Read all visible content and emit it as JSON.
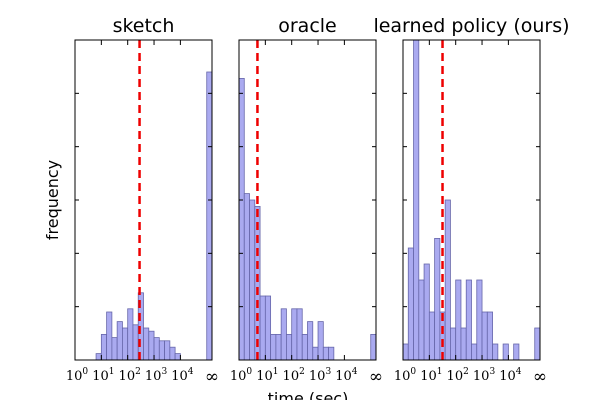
{
  "figure": {
    "xlabel": "time (sec)",
    "ylabel": "frequency"
  },
  "colors": {
    "bar_fill": "#aaaaf0",
    "bar_stroke": "#6666aa",
    "median_line": "#ee0000"
  },
  "x_ticks": [
    {
      "base": "10",
      "exp": "0"
    },
    {
      "base": "10",
      "exp": "1"
    },
    {
      "base": "10",
      "exp": "2"
    },
    {
      "base": "10",
      "exp": "3"
    },
    {
      "base": "10",
      "exp": "4"
    },
    {
      "base": "∞",
      "exp": ""
    }
  ],
  "chart_data": [
    {
      "type": "bar",
      "title": "sketch",
      "x_scale": "log10",
      "xlim": [
        1,
        100000
      ],
      "inf_label": "∞",
      "median_log10": 2.45,
      "bars": [
        {
          "log10_start": 0.8,
          "count": 0.02
        },
        {
          "log10_start": 1.0,
          "count": 0.08
        },
        {
          "log10_start": 1.2,
          "count": 0.15
        },
        {
          "log10_start": 1.4,
          "count": 0.07
        },
        {
          "log10_start": 1.6,
          "count": 0.12
        },
        {
          "log10_start": 1.8,
          "count": 0.1
        },
        {
          "log10_start": 2.0,
          "count": 0.16
        },
        {
          "log10_start": 2.2,
          "count": 0.11
        },
        {
          "log10_start": 2.4,
          "count": 0.21
        },
        {
          "log10_start": 2.6,
          "count": 0.1
        },
        {
          "log10_start": 2.8,
          "count": 0.09
        },
        {
          "log10_start": 3.0,
          "count": 0.07
        },
        {
          "log10_start": 3.2,
          "count": 0.06
        },
        {
          "log10_start": 3.4,
          "count": 0.06
        },
        {
          "log10_start": 3.6,
          "count": 0.04
        },
        {
          "log10_start": 3.8,
          "count": 0.02
        },
        {
          "log10_start": 5.0,
          "count": 0.9
        }
      ]
    },
    {
      "type": "bar",
      "title": "oracle",
      "x_scale": "log10",
      "xlim": [
        1,
        100000
      ],
      "inf_label": "∞",
      "median_log10": 0.7,
      "bars": [
        {
          "log10_start": 0.0,
          "count": 0.88
        },
        {
          "log10_start": 0.2,
          "count": 0.52
        },
        {
          "log10_start": 0.4,
          "count": 0.5
        },
        {
          "log10_start": 0.6,
          "count": 0.48
        },
        {
          "log10_start": 0.8,
          "count": 0.2
        },
        {
          "log10_start": 1.0,
          "count": 0.2
        },
        {
          "log10_start": 1.2,
          "count": 0.08
        },
        {
          "log10_start": 1.4,
          "count": 0.08
        },
        {
          "log10_start": 1.6,
          "count": 0.16
        },
        {
          "log10_start": 1.8,
          "count": 0.08
        },
        {
          "log10_start": 2.0,
          "count": 0.16
        },
        {
          "log10_start": 2.2,
          "count": 0.16
        },
        {
          "log10_start": 2.4,
          "count": 0.08
        },
        {
          "log10_start": 2.6,
          "count": 0.12
        },
        {
          "log10_start": 2.8,
          "count": 0.04
        },
        {
          "log10_start": 3.0,
          "count": 0.12
        },
        {
          "log10_start": 3.2,
          "count": 0.04
        },
        {
          "log10_start": 3.4,
          "count": 0.04
        },
        {
          "log10_start": 5.0,
          "count": 0.08
        }
      ]
    },
    {
      "type": "bar",
      "title": "learned policy (ours)",
      "x_scale": "log10",
      "xlim": [
        1,
        100000
      ],
      "inf_label": "∞",
      "median_log10": 1.5,
      "bars": [
        {
          "log10_start": 0.0,
          "count": 0.05
        },
        {
          "log10_start": 0.2,
          "count": 0.35
        },
        {
          "log10_start": 0.4,
          "count": 1.0
        },
        {
          "log10_start": 0.6,
          "count": 0.25
        },
        {
          "log10_start": 0.8,
          "count": 0.3
        },
        {
          "log10_start": 1.0,
          "count": 0.15
        },
        {
          "log10_start": 1.2,
          "count": 0.38
        },
        {
          "log10_start": 1.4,
          "count": 0.15
        },
        {
          "log10_start": 1.6,
          "count": 0.5
        },
        {
          "log10_start": 1.8,
          "count": 0.1
        },
        {
          "log10_start": 2.0,
          "count": 0.25
        },
        {
          "log10_start": 2.2,
          "count": 0.1
        },
        {
          "log10_start": 2.4,
          "count": 0.25
        },
        {
          "log10_start": 2.6,
          "count": 0.05
        },
        {
          "log10_start": 2.8,
          "count": 0.25
        },
        {
          "log10_start": 3.0,
          "count": 0.15
        },
        {
          "log10_start": 3.2,
          "count": 0.15
        },
        {
          "log10_start": 3.4,
          "count": 0.05
        },
        {
          "log10_start": 3.8,
          "count": 0.05
        },
        {
          "log10_start": 4.2,
          "count": 0.05
        },
        {
          "log10_start": 5.0,
          "count": 0.1
        }
      ]
    }
  ]
}
